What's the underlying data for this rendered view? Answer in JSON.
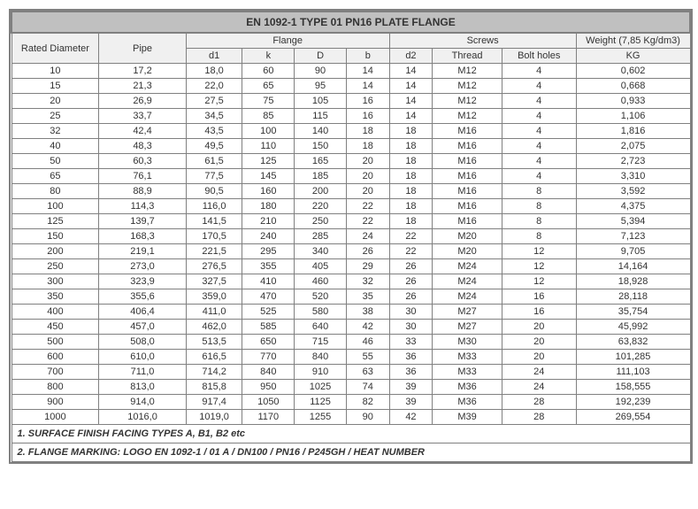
{
  "title": "EN 1092-1 TYPE 01 PN16 PLATE FLANGE",
  "headers": {
    "rated_diameter": "Rated Diameter",
    "pipe": "Pipe",
    "flange": "Flange",
    "screws": "Screws",
    "weight": "Weight (7,85 Kg/dm3)",
    "d1": "d1",
    "k": "k",
    "D_big": "D",
    "b": "b",
    "d2": "d2",
    "thread": "Thread",
    "bolt_holes": "Bolt holes",
    "kg": "KG"
  },
  "rows": [
    {
      "dn": "10",
      "pipe": "17,2",
      "d1": "18,0",
      "k": "60",
      "D": "90",
      "b": "14",
      "d2": "14",
      "thread": "M12",
      "holes": "4",
      "kg": "0,602"
    },
    {
      "dn": "15",
      "pipe": "21,3",
      "d1": "22,0",
      "k": "65",
      "D": "95",
      "b": "14",
      "d2": "14",
      "thread": "M12",
      "holes": "4",
      "kg": "0,668"
    },
    {
      "dn": "20",
      "pipe": "26,9",
      "d1": "27,5",
      "k": "75",
      "D": "105",
      "b": "16",
      "d2": "14",
      "thread": "M12",
      "holes": "4",
      "kg": "0,933"
    },
    {
      "dn": "25",
      "pipe": "33,7",
      "d1": "34,5",
      "k": "85",
      "D": "115",
      "b": "16",
      "d2": "14",
      "thread": "M12",
      "holes": "4",
      "kg": "1,106"
    },
    {
      "dn": "32",
      "pipe": "42,4",
      "d1": "43,5",
      "k": "100",
      "D": "140",
      "b": "18",
      "d2": "18",
      "thread": "M16",
      "holes": "4",
      "kg": "1,816"
    },
    {
      "dn": "40",
      "pipe": "48,3",
      "d1": "49,5",
      "k": "110",
      "D": "150",
      "b": "18",
      "d2": "18",
      "thread": "M16",
      "holes": "4",
      "kg": "2,075"
    },
    {
      "dn": "50",
      "pipe": "60,3",
      "d1": "61,5",
      "k": "125",
      "D": "165",
      "b": "20",
      "d2": "18",
      "thread": "M16",
      "holes": "4",
      "kg": "2,723"
    },
    {
      "dn": "65",
      "pipe": "76,1",
      "d1": "77,5",
      "k": "145",
      "D": "185",
      "b": "20",
      "d2": "18",
      "thread": "M16",
      "holes": "4",
      "kg": "3,310"
    },
    {
      "dn": "80",
      "pipe": "88,9",
      "d1": "90,5",
      "k": "160",
      "D": "200",
      "b": "20",
      "d2": "18",
      "thread": "M16",
      "holes": "8",
      "kg": "3,592"
    },
    {
      "dn": "100",
      "pipe": "114,3",
      "d1": "116,0",
      "k": "180",
      "D": "220",
      "b": "22",
      "d2": "18",
      "thread": "M16",
      "holes": "8",
      "kg": "4,375"
    },
    {
      "dn": "125",
      "pipe": "139,7",
      "d1": "141,5",
      "k": "210",
      "D": "250",
      "b": "22",
      "d2": "18",
      "thread": "M16",
      "holes": "8",
      "kg": "5,394"
    },
    {
      "dn": "150",
      "pipe": "168,3",
      "d1": "170,5",
      "k": "240",
      "D": "285",
      "b": "24",
      "d2": "22",
      "thread": "M20",
      "holes": "8",
      "kg": "7,123"
    },
    {
      "dn": "200",
      "pipe": "219,1",
      "d1": "221,5",
      "k": "295",
      "D": "340",
      "b": "26",
      "d2": "22",
      "thread": "M20",
      "holes": "12",
      "kg": "9,705"
    },
    {
      "dn": "250",
      "pipe": "273,0",
      "d1": "276,5",
      "k": "355",
      "D": "405",
      "b": "29",
      "d2": "26",
      "thread": "M24",
      "holes": "12",
      "kg": "14,164"
    },
    {
      "dn": "300",
      "pipe": "323,9",
      "d1": "327,5",
      "k": "410",
      "D": "460",
      "b": "32",
      "d2": "26",
      "thread": "M24",
      "holes": "12",
      "kg": "18,928"
    },
    {
      "dn": "350",
      "pipe": "355,6",
      "d1": "359,0",
      "k": "470",
      "D": "520",
      "b": "35",
      "d2": "26",
      "thread": "M24",
      "holes": "16",
      "kg": "28,118"
    },
    {
      "dn": "400",
      "pipe": "406,4",
      "d1": "411,0",
      "k": "525",
      "D": "580",
      "b": "38",
      "d2": "30",
      "thread": "M27",
      "holes": "16",
      "kg": "35,754"
    },
    {
      "dn": "450",
      "pipe": "457,0",
      "d1": "462,0",
      "k": "585",
      "D": "640",
      "b": "42",
      "d2": "30",
      "thread": "M27",
      "holes": "20",
      "kg": "45,992"
    },
    {
      "dn": "500",
      "pipe": "508,0",
      "d1": "513,5",
      "k": "650",
      "D": "715",
      "b": "46",
      "d2": "33",
      "thread": "M30",
      "holes": "20",
      "kg": "63,832"
    },
    {
      "dn": "600",
      "pipe": "610,0",
      "d1": "616,5",
      "k": "770",
      "D": "840",
      "b": "55",
      "d2": "36",
      "thread": "M33",
      "holes": "20",
      "kg": "101,285"
    },
    {
      "dn": "700",
      "pipe": "711,0",
      "d1": "714,2",
      "k": "840",
      "D": "910",
      "b": "63",
      "d2": "36",
      "thread": "M33",
      "holes": "24",
      "kg": "111,103"
    },
    {
      "dn": "800",
      "pipe": "813,0",
      "d1": "815,8",
      "k": "950",
      "D": "1025",
      "b": "74",
      "d2": "39",
      "thread": "M36",
      "holes": "24",
      "kg": "158,555"
    },
    {
      "dn": "900",
      "pipe": "914,0",
      "d1": "917,4",
      "k": "1050",
      "D": "1125",
      "b": "82",
      "d2": "39",
      "thread": "M36",
      "holes": "28",
      "kg": "192,239"
    },
    {
      "dn": "1000",
      "pipe": "1016,0",
      "d1": "1019,0",
      "k": "1170",
      "D": "1255",
      "b": "90",
      "d2": "42",
      "thread": "M39",
      "holes": "28",
      "kg": "269,554"
    }
  ],
  "footer1": "1. SURFACE FINISH FACING TYPES A, B1, B2 etc",
  "footer2": "2. FLANGE MARKING: LOGO EN 1092-1 / 01 A / DN100 / PN16 / P245GH / HEAT NUMBER",
  "colwidths": {
    "dn": 90,
    "pipe": 90,
    "d1": 55,
    "k": 50,
    "D": 50,
    "b": 40,
    "d2": 40,
    "thread": 70,
    "holes": 75,
    "kg": 120
  },
  "colors": {
    "title_bg": "#c0c0c0",
    "header_bg": "#f0f0f0",
    "border": "#808080",
    "text": "#333333"
  }
}
